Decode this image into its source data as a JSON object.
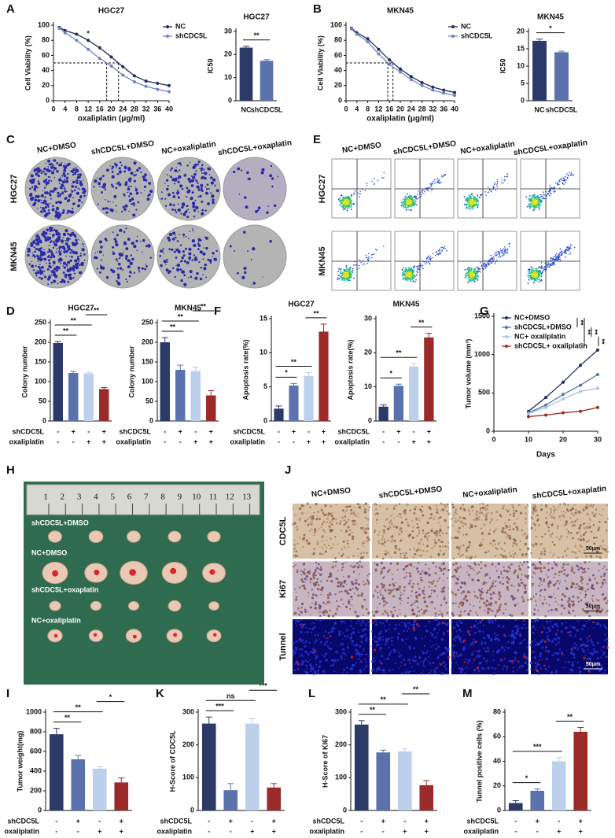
{
  "letters": [
    "A",
    "B",
    "C",
    "D",
    "E",
    "F",
    "G",
    "H",
    "I",
    "J",
    "K",
    "L",
    "M"
  ],
  "chart_data": [
    {
      "type": "line",
      "title": "HGC27",
      "x": [
        2,
        4,
        8,
        12,
        16,
        20,
        24,
        28,
        32,
        36,
        40
      ],
      "series": [
        {
          "name": "NC",
          "color": "#1f2d5a",
          "values": [
            97,
            93,
            88,
            80,
            70,
            58,
            45,
            33,
            26,
            23,
            20
          ]
        },
        {
          "name": "shCDC5L",
          "color": "#6f83bd",
          "values": [
            96,
            90,
            80,
            68,
            56,
            46,
            34,
            25,
            19,
            15,
            12
          ]
        }
      ],
      "xlabel": "oxaliplatin (μg/ml)",
      "ylabel": "Cell Viability (%)",
      "xlim": [
        0,
        40
      ],
      "xticks": [
        0,
        4,
        8,
        12,
        16,
        20,
        24,
        28,
        32,
        36,
        40
      ],
      "ylim": [
        0,
        100
      ],
      "yticks": [
        0,
        20,
        40,
        60,
        80,
        100
      ],
      "reference_lines": {
        "y": 50,
        "x": [
          18.4,
          22.5
        ]
      },
      "annotations": [
        {
          "text": "*",
          "x": 12
        }
      ],
      "legend": "upper right"
    },
    {
      "type": "bar",
      "title": "HGC27",
      "categories": [
        "NC",
        "shCDC5L"
      ],
      "values": [
        23,
        17.3
      ],
      "errors": [
        0.6,
        0.5
      ],
      "colors": [
        "#2b3a67",
        "#5b72ad"
      ],
      "ylabel": "IC50",
      "ylim": [
        0,
        30
      ],
      "yticks": [
        0,
        10,
        20,
        30
      ],
      "annotations": [
        {
          "text": "**",
          "between": [
            0,
            1
          ]
        }
      ]
    },
    {
      "type": "line",
      "title": "MKN45",
      "x": [
        2,
        4,
        8,
        12,
        16,
        20,
        24,
        28,
        32,
        36,
        40
      ],
      "series": [
        {
          "name": "NC",
          "color": "#1f2d5a",
          "values": [
            96,
            90,
            82,
            68,
            54,
            42,
            32,
            24,
            18,
            14,
            11
          ]
        },
        {
          "name": "shCDC5L",
          "color": "#6f83bd",
          "values": [
            95,
            88,
            78,
            62,
            48,
            38,
            28,
            20,
            14,
            10,
            7
          ]
        }
      ],
      "xlabel": "oxaliplatin (μg/ml)",
      "ylabel": "Cell Viability (%)",
      "xlim": [
        0,
        40
      ],
      "xticks": [
        0,
        4,
        8,
        12,
        16,
        20,
        24,
        28,
        32,
        36,
        40
      ],
      "ylim": [
        0,
        100
      ],
      "yticks": [
        0,
        20,
        40,
        60,
        80,
        100
      ],
      "reference_lines": {
        "y": 50,
        "x": [
          15.4,
          17.3
        ]
      },
      "legend": "upper right"
    },
    {
      "type": "bar",
      "title": "MKN45",
      "categories": [
        "NC",
        "shCDC5L"
      ],
      "values": [
        17.3,
        14
      ],
      "errors": [
        0.5,
        0.3
      ],
      "colors": [
        "#2b3a67",
        "#5b72ad"
      ],
      "ylabel": "IC50",
      "ylim": [
        0,
        20
      ],
      "yticks": [
        0,
        5,
        10,
        15,
        20
      ],
      "annotations": [
        {
          "text": "*",
          "between": [
            0,
            1
          ]
        }
      ]
    },
    {
      "type": "bar",
      "title": "HGC27",
      "values": [
        198,
        122,
        121,
        81
      ],
      "errors": [
        4,
        4,
        3,
        4
      ],
      "colors": [
        "#2b3a67",
        "#5b72ad",
        "#bcd0ec",
        "#9b2a2a"
      ],
      "ylabel": "Colony number",
      "ylim": [
        0,
        250
      ],
      "yticks": [
        0,
        50,
        100,
        150,
        200,
        250
      ],
      "conditions": [
        {
          "name": "shCDC5L",
          "signs": [
            "-",
            "+",
            "-",
            "+"
          ]
        },
        {
          "name": "oxaliplatin",
          "signs": [
            "-",
            "-",
            "+",
            "+"
          ]
        }
      ],
      "annotations": [
        {
          "text": "**",
          "between": [
            0,
            1
          ]
        },
        {
          "text": "**",
          "between": [
            0,
            2
          ]
        },
        {
          "text": "**",
          "between": [
            2,
            3
          ]
        }
      ]
    },
    {
      "type": "bar",
      "title": "MKN45",
      "values": [
        200,
        130,
        127,
        65
      ],
      "errors": [
        12,
        12,
        10,
        12
      ],
      "colors": [
        "#2b3a67",
        "#5b72ad",
        "#bcd0ec",
        "#9b2a2a"
      ],
      "ylabel": "Colony number",
      "ylim": [
        0,
        250
      ],
      "yticks": [
        0,
        50,
        100,
        150,
        200,
        250
      ],
      "conditions": [
        {
          "name": "shCDC5L",
          "signs": [
            "-",
            "+",
            "-",
            "+"
          ]
        },
        {
          "name": "oxaliplatin",
          "signs": [
            "-",
            "-",
            "+",
            "+"
          ]
        }
      ],
      "annotations": [
        {
          "text": "**",
          "between": [
            0,
            1
          ]
        },
        {
          "text": "**",
          "between": [
            0,
            2
          ]
        },
        {
          "text": "**",
          "between": [
            2,
            3
          ]
        }
      ]
    },
    {
      "type": "bar",
      "title": "HGC27",
      "values": [
        1.8,
        5.2,
        6.6,
        13.1
      ],
      "errors": [
        0.4,
        0.3,
        0.5,
        1.1
      ],
      "colors": [
        "#2b3a67",
        "#5b72ad",
        "#bcd0ec",
        "#9b2a2a"
      ],
      "ylabel": "Apoptosis rate(%)",
      "ylim": [
        0,
        15
      ],
      "yticks": [
        0,
        5,
        10,
        15
      ],
      "conditions": [
        {
          "name": "shCDC5L",
          "signs": [
            "-",
            "+",
            "-",
            "+"
          ]
        },
        {
          "name": "oxaliplatin",
          "signs": [
            "-",
            "-",
            "+",
            "+"
          ]
        }
      ],
      "annotations": [
        {
          "text": "*",
          "between": [
            0,
            1
          ]
        },
        {
          "text": "**",
          "between": [
            0,
            2
          ]
        },
        {
          "text": "**",
          "between": [
            2,
            3
          ]
        }
      ]
    },
    {
      "type": "bar",
      "title": "MKN45",
      "values": [
        4.2,
        10.3,
        16,
        24.5
      ],
      "errors": [
        0.5,
        0.5,
        0.8,
        1.2
      ],
      "colors": [
        "#2b3a67",
        "#5b72ad",
        "#bcd0ec",
        "#9b2a2a"
      ],
      "ylabel": "Apoptosis rate(%)",
      "ylim": [
        0,
        30
      ],
      "yticks": [
        0,
        10,
        20,
        30
      ],
      "conditions": [
        {
          "name": "shCDC5L",
          "signs": [
            "-",
            "+",
            "-",
            "+"
          ]
        },
        {
          "name": "oxaliplatin",
          "signs": [
            "-",
            "-",
            "+",
            "+"
          ]
        }
      ],
      "annotations": [
        {
          "text": "*",
          "between": [
            0,
            1
          ]
        },
        {
          "text": "**",
          "between": [
            0,
            2
          ]
        },
        {
          "text": "**",
          "between": [
            2,
            3
          ]
        }
      ]
    },
    {
      "type": "line",
      "x": [
        10,
        15,
        20,
        25,
        30
      ],
      "series": [
        {
          "name": "NC+DMSO",
          "color": "#1f2d5a",
          "values": [
            260,
            440,
            640,
            860,
            1060
          ]
        },
        {
          "name": "shCDC5L+DMSO",
          "color": "#5b72ad",
          "values": [
            240,
            340,
            480,
            600,
            740
          ]
        },
        {
          "name": "NC+ oxaliplatin",
          "color": "#a9c1e6",
          "values": [
            230,
            310,
            420,
            520,
            560
          ]
        },
        {
          "name": "shCDC5L+ oxaliplatin",
          "color": "#9b2a2a",
          "values": [
            190,
            210,
            240,
            260,
            310
          ]
        }
      ],
      "xlabel": "Days",
      "ylabel": "Tumor volume (mm³)",
      "xlim": [
        0,
        30
      ],
      "xticks": [
        0,
        10,
        20,
        30
      ],
      "ylim": [
        0,
        1500
      ],
      "yticks": [
        0,
        500,
        1000,
        1500
      ],
      "legend": "upper left",
      "annotations": [
        {
          "text": "**",
          "between": [
            0,
            1
          ]
        },
        {
          "text": "**",
          "between": [
            0,
            3
          ]
        },
        {
          "text": "**",
          "between": [
            1,
            2
          ]
        },
        {
          "text": "**",
          "between": [
            2,
            3
          ]
        }
      ]
    },
    {
      "type": "bar",
      "values": [
        775,
        520,
        425,
        285
      ],
      "errors": [
        60,
        40,
        20,
        45
      ],
      "colors": [
        "#2b3a67",
        "#5b72ad",
        "#bcd0ec",
        "#9b2a2a"
      ],
      "ylabel": "Tumor weight(mg)",
      "ylim": [
        0,
        1000
      ],
      "yticks": [
        0,
        200,
        400,
        600,
        800,
        1000
      ],
      "conditions": [
        {
          "name": "shCDC5L",
          "signs": [
            "-",
            "+",
            "-",
            "+"
          ]
        },
        {
          "name": "oxaliplatin",
          "signs": [
            "-",
            "-",
            "+",
            "+"
          ]
        }
      ],
      "annotations": [
        {
          "text": "**",
          "between": [
            0,
            1
          ]
        },
        {
          "text": "**",
          "between": [
            0,
            2
          ]
        },
        {
          "text": "*",
          "between": [
            2,
            3
          ]
        }
      ]
    },
    {
      "type": "bar",
      "values": [
        265,
        62,
        265,
        70
      ],
      "errors": [
        20,
        20,
        15,
        12
      ],
      "colors": [
        "#2b3a67",
        "#5b72ad",
        "#bcd0ec",
        "#9b2a2a"
      ],
      "ylabel": "H-Score of CDC5L",
      "ylim": [
        0,
        300
      ],
      "yticks": [
        0,
        100,
        200,
        300
      ],
      "conditions": [
        {
          "name": "shCDC5L",
          "signs": [
            "-",
            "+",
            "-",
            "+"
          ]
        },
        {
          "name": "oxaliplatin",
          "signs": [
            "-",
            "-",
            "+",
            "+"
          ]
        }
      ],
      "annotations": [
        {
          "text": "***",
          "between": [
            0,
            1
          ]
        },
        {
          "text": "ns",
          "between": [
            0,
            2
          ]
        },
        {
          "text": "***",
          "between": [
            2,
            3
          ]
        }
      ]
    },
    {
      "type": "bar",
      "values": [
        262,
        177,
        180,
        77
      ],
      "errors": [
        12,
        7,
        8,
        14
      ],
      "colors": [
        "#2b3a67",
        "#5b72ad",
        "#bcd0ec",
        "#9b2a2a"
      ],
      "ylabel": "H-Score of KI67",
      "ylim": [
        0,
        300
      ],
      "yticks": [
        0,
        100,
        200,
        300
      ],
      "conditions": [
        {
          "name": "shCDC5L",
          "signs": [
            "-",
            "+",
            "-",
            "+"
          ]
        },
        {
          "name": "oxaliplatin",
          "signs": [
            "-",
            "-",
            "+",
            "+"
          ]
        }
      ],
      "annotations": [
        {
          "text": "**",
          "between": [
            0,
            1
          ]
        },
        {
          "text": "**",
          "between": [
            0,
            2
          ]
        },
        {
          "text": "**",
          "between": [
            2,
            3
          ]
        }
      ]
    },
    {
      "type": "bar",
      "values": [
        6,
        16,
        40,
        64
      ],
      "errors": [
        2,
        1.5,
        3,
        3.5
      ],
      "colors": [
        "#2b3a67",
        "#5b72ad",
        "#bcd0ec",
        "#9b2a2a"
      ],
      "ylabel": "Tunnel positive cells (%)",
      "ylim": [
        0,
        80
      ],
      "yticks": [
        0,
        20,
        40,
        60,
        80
      ],
      "conditions": [
        {
          "name": "shCDC5L",
          "signs": [
            "-",
            "+",
            "-",
            "+"
          ]
        },
        {
          "name": "oxaliplatin",
          "signs": [
            "-",
            "-",
            "+",
            "+"
          ]
        }
      ],
      "annotations": [
        {
          "text": "*",
          "between": [
            0,
            1
          ]
        },
        {
          "text": "***",
          "between": [
            0,
            2
          ]
        },
        {
          "text": "**",
          "between": [
            2,
            3
          ]
        }
      ]
    }
  ],
  "colony_images": {
    "columns": [
      "NC+DMSO",
      "shCDC5L+DMSO",
      "NC+oxaliplatin",
      "shCDC5L+oxaplatin"
    ],
    "rows": [
      "HGC27",
      "MKN45"
    ]
  },
  "flow_images": {
    "columns": [
      "NC+DMSO",
      "shCDC5L+DMSO",
      "NC+oxaliplatin",
      "shCDC5L+oxaplatin"
    ],
    "rows": [
      "HGC27",
      "MKN45"
    ]
  },
  "tumor_photo": {
    "ruler": [
      "1",
      "2",
      "3",
      "4",
      "5",
      "6",
      "7",
      "8",
      "9",
      "10",
      "11",
      "12",
      "13"
    ],
    "groups": [
      "shCDC5L+DMSO",
      "NC+DMSO",
      "shCDC5L+oxaplatin",
      "NC+oxaliplatin"
    ]
  },
  "ihc": {
    "columns": [
      "NC+DMSO",
      "shCDC5L+DMSO",
      "NC+oxaliplatin",
      "shCDC5L+oxaplatin"
    ],
    "rows": [
      "CDC5L",
      "Ki67",
      "Tunnel"
    ],
    "scale_bars": [
      "50μm",
      "50μm",
      "50μm"
    ]
  }
}
